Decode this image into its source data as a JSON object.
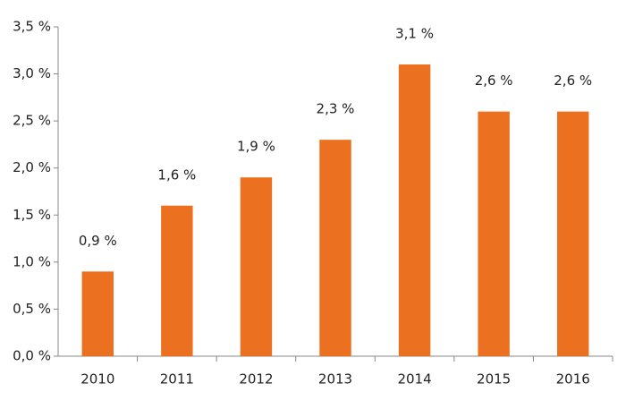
{
  "chart_data": {
    "type": "bar",
    "categories": [
      "2010",
      "2011",
      "2012",
      "2013",
      "2014",
      "2015",
      "2016"
    ],
    "values": [
      0.9,
      1.6,
      1.9,
      2.3,
      3.1,
      2.6,
      2.6
    ],
    "value_labels": [
      "0,9 %",
      "1,6 %",
      "1,9 %",
      "2,3 %",
      "3,1 %",
      "2,6 %",
      "2,6 %"
    ],
    "color": "#eb7120",
    "ylim": [
      0,
      3.5
    ],
    "yticks": [
      {
        "value": 0,
        "label": "0,0 %"
      },
      {
        "value": 0.5,
        "label": "0,5 %"
      },
      {
        "value": 1,
        "label": "1,0 %"
      },
      {
        "value": 1.5,
        "label": "1,5 %"
      },
      {
        "value": 2,
        "label": "2,0 %"
      },
      {
        "value": 2.5,
        "label": "2,5 %"
      },
      {
        "value": 3,
        "label": "3,0 %"
      },
      {
        "value": 3.5,
        "label": "3,5 %"
      }
    ],
    "grid": false
  }
}
